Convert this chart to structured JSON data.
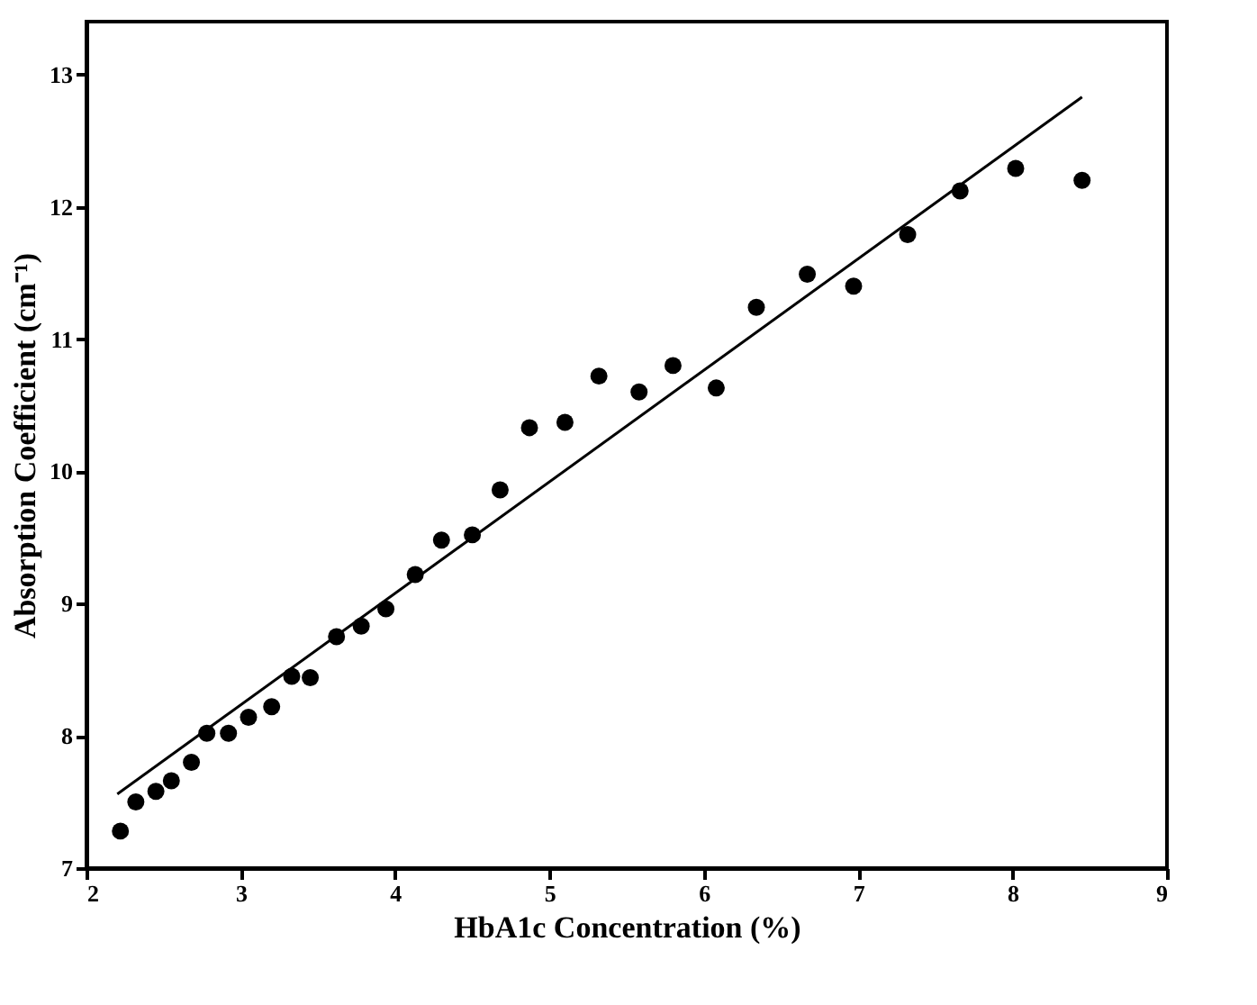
{
  "chart_data": {
    "type": "scatter",
    "xlabel": "HbA1c  Concentration (%)",
    "ylabel": "Absorption Coefficient (cm⁻¹)",
    "xlim": [
      2,
      9
    ],
    "ylim": [
      7,
      13.4
    ],
    "xticks": [
      2,
      3,
      4,
      5,
      6,
      7,
      8,
      9
    ],
    "yticks": [
      7,
      8,
      9,
      10,
      11,
      12,
      13
    ],
    "grid": false,
    "series": [
      {
        "color": "#000000",
        "marker": "circle",
        "x": [
          2.22,
          2.32,
          2.45,
          2.55,
          2.68,
          2.78,
          2.92,
          3.05,
          3.2,
          3.33,
          3.45,
          3.62,
          3.78,
          3.94,
          4.13,
          4.3,
          4.5,
          4.68,
          4.87,
          5.1,
          5.32,
          5.58,
          5.8,
          6.08,
          6.34,
          6.67,
          6.97,
          7.32,
          7.66,
          8.02,
          8.45
        ],
        "values": [
          7.28,
          7.5,
          7.58,
          7.66,
          7.8,
          8.02,
          8.02,
          8.14,
          8.22,
          8.45,
          8.44,
          8.75,
          8.83,
          8.96,
          9.22,
          9.48,
          9.52,
          9.86,
          10.33,
          10.37,
          10.72,
          10.6,
          10.8,
          10.63,
          11.24,
          11.49,
          11.4,
          11.79,
          12.12,
          12.29,
          12.2
        ]
      },
      {
        "type": "line",
        "color": "#000000",
        "line_style": "solid",
        "x": [
          2.2,
          8.45
        ],
        "values": [
          7.56,
          12.83
        ]
      }
    ]
  }
}
